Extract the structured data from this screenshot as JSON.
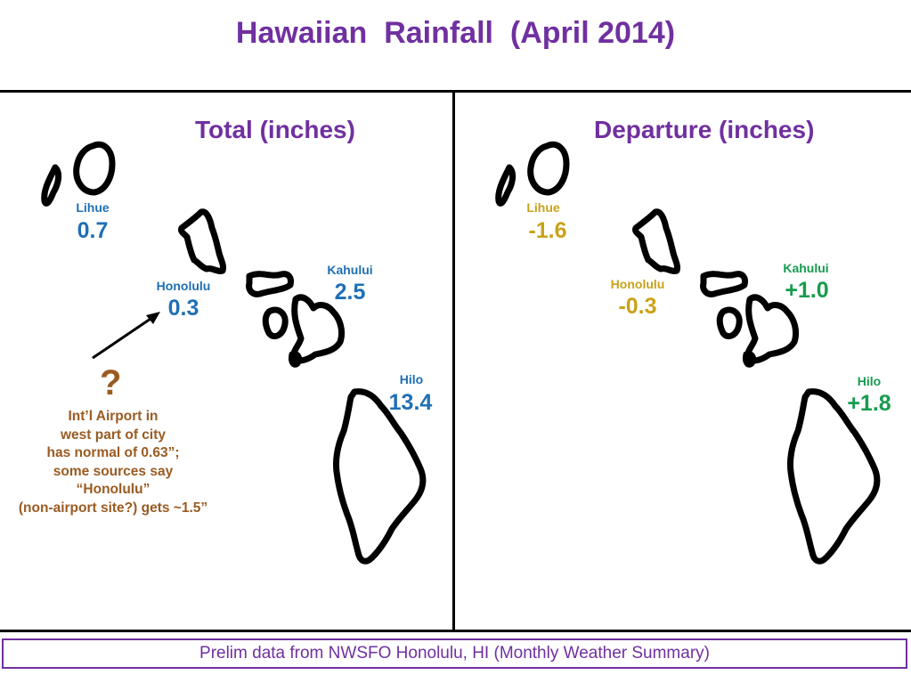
{
  "title": "Hawaiian  Rainfall  (April 2014)",
  "panels": {
    "total": {
      "title": "Total (inches)",
      "stations": [
        {
          "name": "Lihue",
          "value": "0.7"
        },
        {
          "name": "Honolulu",
          "value": "0.3"
        },
        {
          "name": "Kahului",
          "value": "2.5"
        },
        {
          "name": "Hilo",
          "value": "13.4"
        }
      ]
    },
    "departure": {
      "title": "Departure (inches)",
      "stations": [
        {
          "name": "Lihue",
          "value": "-1.6"
        },
        {
          "name": "Honolulu",
          "value": "-0.3"
        },
        {
          "name": "Kahului",
          "value": "+1.0"
        },
        {
          "name": "Hilo",
          "value": "+1.8"
        }
      ]
    }
  },
  "annotation": {
    "symbol": "?",
    "lines": [
      "Int’l Airport in",
      "west part of city",
      "has normal of 0.63”;",
      "some sources say",
      "“Honolulu”",
      "(non-airport site?) gets ~1.5”"
    ]
  },
  "footer": "Prelim data from NWSFO Honolulu, HI (Monthly Weather Summary)",
  "colors": {
    "title": "#7030a0",
    "total_values": "#1f6fb5",
    "negative_departure": "#c9a21a",
    "positive_departure": "#169c4e",
    "annotation": "#9a5b22"
  }
}
